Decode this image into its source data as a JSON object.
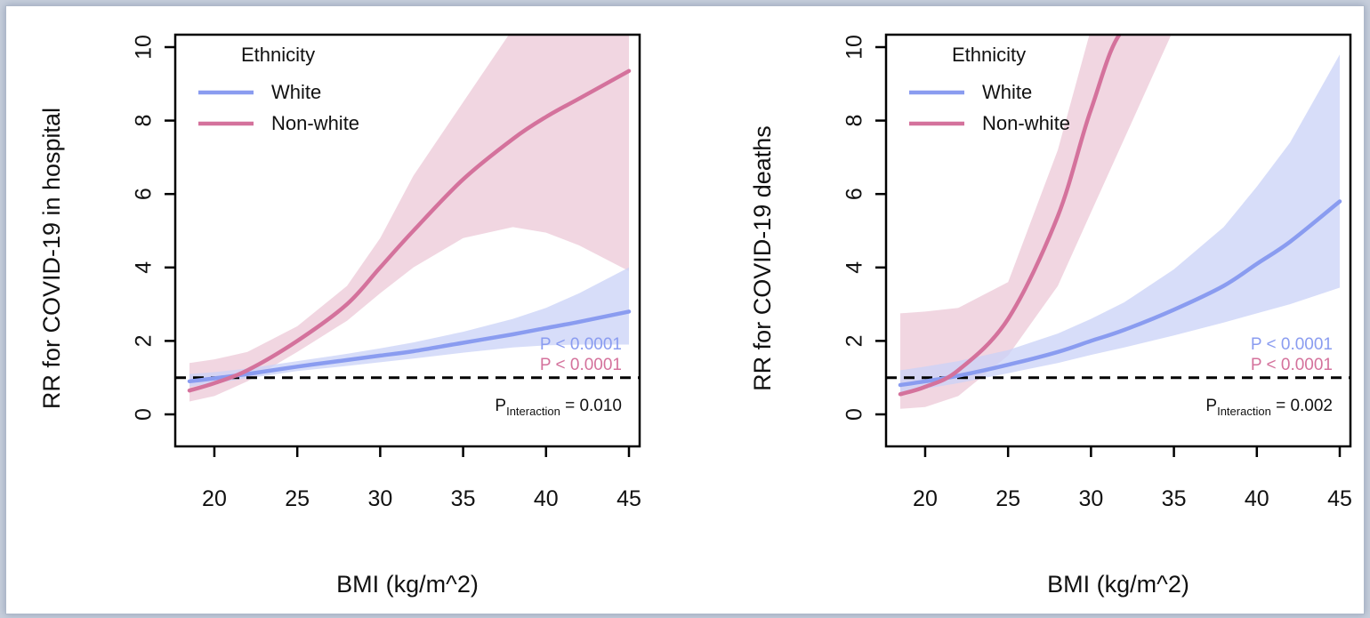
{
  "chart_data": [
    {
      "type": "line",
      "xlabel": "BMI (kg/m^2)",
      "ylabel": "RR for COVID-19 in hospital",
      "xlim": [
        18.5,
        45
      ],
      "ylim": [
        0,
        10
      ],
      "xticks": [
        "20",
        "25",
        "30",
        "35",
        "40",
        "45"
      ],
      "yticks": [
        "0",
        "2",
        "4",
        "6",
        "8",
        "10"
      ],
      "reference_line": 1,
      "legend": {
        "title": "Ethnicity",
        "placement": "top-left"
      },
      "x": [
        18.5,
        20,
        22,
        25,
        28,
        30,
        32,
        35,
        38,
        40,
        42,
        45
      ],
      "series": [
        {
          "name": "White",
          "color": "#8a9cf0",
          "band_color": "#c9d1f7",
          "values": [
            0.9,
            0.98,
            1.1,
            1.3,
            1.48,
            1.6,
            1.72,
            1.95,
            2.18,
            2.35,
            2.52,
            2.8
          ],
          "lower": [
            0.75,
            0.85,
            0.98,
            1.18,
            1.32,
            1.42,
            1.52,
            1.68,
            1.82,
            1.88,
            1.9,
            1.9
          ],
          "upper": [
            1.1,
            1.15,
            1.25,
            1.45,
            1.65,
            1.8,
            1.96,
            2.25,
            2.6,
            2.9,
            3.3,
            4.0
          ],
          "p_value": "P < 0.0001"
        },
        {
          "name": "Non-white",
          "color": "#d4729c",
          "band_color": "#ecc8d7",
          "values": [
            0.65,
            0.85,
            1.2,
            2.0,
            3.0,
            4.0,
            5.0,
            6.4,
            7.5,
            8.1,
            8.6,
            9.35
          ],
          "lower": [
            0.35,
            0.5,
            0.9,
            1.7,
            2.55,
            3.3,
            4.0,
            4.8,
            5.1,
            4.95,
            4.6,
            3.9
          ],
          "upper": [
            1.4,
            1.5,
            1.7,
            2.4,
            3.5,
            4.8,
            6.5,
            8.5,
            10.5,
            10.5,
            10.5,
            10.5
          ],
          "p_value": "P < 0.0001"
        }
      ],
      "p_interaction": {
        "label": "P",
        "sub": "Interaction",
        "value": "= 0.010"
      }
    },
    {
      "type": "line",
      "xlabel": "BMI (kg/m^2)",
      "ylabel": "RR for COVID-19 deaths",
      "xlim": [
        18.5,
        45
      ],
      "ylim": [
        0,
        10
      ],
      "xticks": [
        "20",
        "25",
        "30",
        "35",
        "40",
        "45"
      ],
      "yticks": [
        "0",
        "2",
        "4",
        "6",
        "8",
        "10"
      ],
      "reference_line": 1,
      "legend": {
        "title": "Ethnicity",
        "placement": "top-left"
      },
      "x": [
        18.5,
        20,
        22,
        25,
        28,
        30,
        32,
        35,
        38,
        40,
        42,
        45
      ],
      "series": [
        {
          "name": "White",
          "color": "#8a9cf0",
          "band_color": "#c9d1f7",
          "values": [
            0.8,
            0.9,
            1.05,
            1.35,
            1.7,
            2.0,
            2.3,
            2.85,
            3.5,
            4.1,
            4.7,
            5.8
          ],
          "lower": [
            0.6,
            0.7,
            0.85,
            1.12,
            1.4,
            1.62,
            1.82,
            2.15,
            2.5,
            2.75,
            3.0,
            3.45
          ],
          "upper": [
            1.2,
            1.3,
            1.45,
            1.75,
            2.2,
            2.6,
            3.05,
            3.95,
            5.1,
            6.2,
            7.4,
            9.8
          ],
          "p_value": "P < 0.0001"
        },
        {
          "name": "Non-white",
          "color": "#d4729c",
          "band_color": "#ecc8d7",
          "values": [
            0.55,
            0.75,
            1.2,
            2.6,
            5.4,
            8.3,
            10.5,
            10.5,
            10.5,
            10.5,
            10.5,
            10.5
          ],
          "lower": [
            0.15,
            0.2,
            0.5,
            1.6,
            3.5,
            5.5,
            7.5,
            10.5,
            10.5,
            10.5,
            10.5,
            10.5
          ],
          "upper": [
            2.75,
            2.8,
            2.9,
            3.6,
            7.2,
            10.5,
            10.5,
            10.5,
            10.5,
            10.5,
            10.5,
            10.5
          ],
          "p_value": "P < 0.0001"
        }
      ],
      "p_interaction": {
        "label": "P",
        "sub": "Interaction",
        "value": "= 0.002"
      }
    }
  ]
}
